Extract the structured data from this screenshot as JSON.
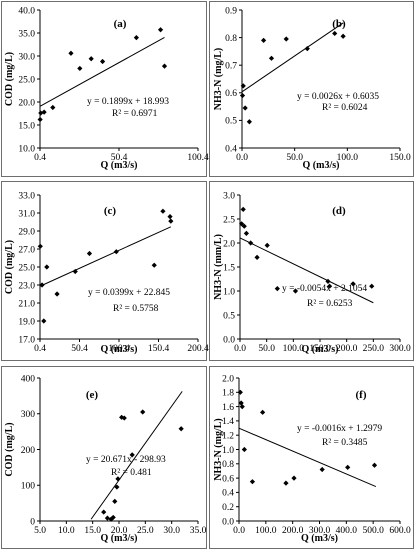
{
  "chart_data": [
    {
      "type": "scatter",
      "panel": "(a)",
      "ylabel": "COD (mg/L)",
      "xlabel": "Q (m3/s)",
      "xlim": [
        0.4,
        100.4
      ],
      "ylim": [
        10.0,
        40.0
      ],
      "x_ticks": [
        0.4,
        50.4,
        100.4
      ],
      "x_tick_labels": [
        "0.4",
        "50.4",
        "100.4"
      ],
      "y_ticks": [
        10,
        15,
        20,
        25,
        30,
        35,
        40
      ],
      "y_tick_labels": [
        "10.0",
        "15.0",
        "20.0",
        "25.0",
        "30.0",
        "35.0",
        "40.0"
      ],
      "points": [
        [
          0.5,
          16.2
        ],
        [
          0.9,
          17.6
        ],
        [
          3.0,
          17.8
        ],
        [
          8.5,
          18.8
        ],
        [
          20.0,
          30.6
        ],
        [
          25.6,
          27.3
        ],
        [
          32.8,
          29.4
        ],
        [
          40.0,
          28.8
        ],
        [
          61.4,
          34.0
        ],
        [
          76.7,
          35.7
        ],
        [
          79.2,
          27.8
        ]
      ],
      "trendline": {
        "slope": 0.1899,
        "intercept": 18.993,
        "x_range": [
          0.4,
          79.2
        ]
      },
      "equation": "y = 0.1899x + 18.993",
      "r_squared": "R² = 0.6971"
    },
    {
      "type": "scatter",
      "panel": "(b)",
      "ylabel": "NH3-N (mg/L)",
      "xlabel": "Q  (m3/s)",
      "xlim": [
        0,
        150
      ],
      "ylim": [
        0.4,
        0.9
      ],
      "x_ticks": [
        0,
        50,
        100,
        150
      ],
      "x_tick_labels": [
        "0.0",
        "50.0",
        "100.0",
        "150.0"
      ],
      "y_ticks": [
        0.4,
        0.5,
        0.6,
        0.7,
        0.8,
        0.9
      ],
      "y_tick_labels": [
        "0.4",
        "0.5",
        "0.6",
        "0.7",
        "0.8",
        "0.9"
      ],
      "points": [
        [
          0.5,
          0.59
        ],
        [
          1.2,
          0.625
        ],
        [
          3.0,
          0.545
        ],
        [
          7.0,
          0.495
        ],
        [
          20.5,
          0.79
        ],
        [
          28.0,
          0.725
        ],
        [
          42.0,
          0.795
        ],
        [
          62.0,
          0.76
        ],
        [
          88.0,
          0.815
        ],
        [
          96.0,
          0.805
        ]
      ],
      "trendline": {
        "slope": 0.0026,
        "intercept": 0.6035,
        "x_range": [
          0,
          96
        ]
      },
      "equation": "y = 0.0026x + 0.6035",
      "r_squared": "R² = 0.6024"
    },
    {
      "type": "scatter",
      "panel": "(c)",
      "ylabel": "COD (mg/L)",
      "xlabel": "Q (m3/s)",
      "xlim": [
        0.4,
        200.4
      ],
      "ylim": [
        17.0,
        33.0
      ],
      "x_ticks": [
        0.4,
        50.4,
        100.4,
        150.4,
        200.4
      ],
      "x_tick_labels": [
        "0.4",
        "50.4",
        "100.4",
        "150.4",
        "200.4"
      ],
      "y_ticks": [
        17,
        19,
        21,
        23,
        25,
        27,
        29,
        31,
        33
      ],
      "y_tick_labels": [
        "17.0",
        "19.0",
        "21.0",
        "23.0",
        "25.0",
        "27.0",
        "29.0",
        "31.0",
        "33.0"
      ],
      "points": [
        [
          0.8,
          27.3
        ],
        [
          3.0,
          23.0
        ],
        [
          5.2,
          19.0
        ],
        [
          9.0,
          25.0
        ],
        [
          22.0,
          22.0
        ],
        [
          45.0,
          24.5
        ],
        [
          63.0,
          26.5
        ],
        [
          97.0,
          26.7
        ],
        [
          145.0,
          25.2
        ],
        [
          156.0,
          31.2
        ],
        [
          165.0,
          30.6
        ],
        [
          166.0,
          30.1
        ]
      ],
      "trendline": {
        "slope": 0.0399,
        "intercept": 22.845,
        "x_range": [
          0.4,
          166
        ]
      },
      "equation": "y = 0.0399x + 22.845",
      "r_squared": "R² = 0.5758"
    },
    {
      "type": "scatter",
      "panel": "(d)",
      "ylabel": "NH3-N    (mm/L)",
      "xlabel": "Q (m3/s)",
      "xlim": [
        0,
        300
      ],
      "ylim": [
        0.0,
        3.0
      ],
      "x_ticks": [
        0,
        50,
        100,
        150,
        200,
        250,
        300
      ],
      "x_tick_labels": [
        "0.0",
        "50.0",
        "100.0",
        "150.0",
        "200.0",
        "250.0",
        "300.0"
      ],
      "y_ticks": [
        0.0,
        0.5,
        1.0,
        1.5,
        2.0,
        2.5,
        3.0
      ],
      "y_tick_labels": [
        "0.0",
        "0.5",
        "1.0",
        "1.5",
        "2.0",
        "2.5",
        "3.0"
      ],
      "points": [
        [
          3.0,
          2.4
        ],
        [
          6.0,
          2.7
        ],
        [
          8.0,
          2.35
        ],
        [
          12.0,
          2.2
        ],
        [
          20.0,
          2.0
        ],
        [
          32.0,
          1.7
        ],
        [
          51.0,
          1.95
        ],
        [
          70.0,
          1.05
        ],
        [
          104.0,
          1.0
        ],
        [
          165.0,
          1.2
        ],
        [
          168.0,
          1.1
        ],
        [
          212.0,
          1.15
        ],
        [
          247.0,
          1.1
        ]
      ],
      "trendline": {
        "slope": -0.0054,
        "intercept": 2.1054,
        "x_range": [
          0,
          250
        ]
      },
      "equation": "y = -0.0054x + 2.1054",
      "r_squared": "R² = 0.6253"
    },
    {
      "type": "scatter",
      "panel": "(e)",
      "ylabel": "COD (mg/L)",
      "xlabel": "Q (m3/s)",
      "xlim": [
        5.0,
        35.0
      ],
      "ylim": [
        0,
        400
      ],
      "x_ticks": [
        5,
        10,
        15,
        20,
        25,
        30,
        35
      ],
      "x_tick_labels": [
        "5.0",
        "10.0",
        "15.0",
        "20.0",
        "25.0",
        "30.0",
        "35.0"
      ],
      "y_ticks": [
        0,
        100,
        200,
        300,
        400
      ],
      "y_tick_labels": [
        "0",
        "100",
        "200",
        "300",
        "400"
      ],
      "points": [
        [
          17.1,
          25
        ],
        [
          17.8,
          8
        ],
        [
          18.5,
          5
        ],
        [
          18.9,
          10
        ],
        [
          19.2,
          55
        ],
        [
          19.6,
          95
        ],
        [
          19.8,
          118
        ],
        [
          20.5,
          290
        ],
        [
          21.0,
          288
        ],
        [
          22.5,
          185
        ],
        [
          24.5,
          305
        ],
        [
          31.8,
          258
        ]
      ],
      "trendline": {
        "slope": 20.671,
        "intercept": -298.93,
        "x_range": [
          14.7,
          32
        ]
      },
      "equation": "y = 20.671x - 298.93",
      "r_squared": "R² = 0.481"
    },
    {
      "type": "scatter",
      "panel": "(f)",
      "ylabel": "NH3-N    (mg/L)",
      "xlabel": "Q (m3/s)",
      "xlim": [
        0,
        600
      ],
      "ylim": [
        0.0,
        2.0
      ],
      "x_ticks": [
        0,
        100,
        200,
        300,
        400,
        500,
        600
      ],
      "x_tick_labels": [
        "0.0",
        "100.0",
        "200.0",
        "300.0",
        "400.0",
        "500.0",
        "600.0"
      ],
      "y_ticks": [
        0.0,
        0.2,
        0.4,
        0.6,
        0.8,
        1.0,
        1.2,
        1.4,
        1.6,
        1.8,
        2.0
      ],
      "y_tick_labels": [
        "0.0",
        "0.2",
        "0.4",
        "0.6",
        "0.8",
        "1.0",
        "1.2",
        "1.4",
        "1.6",
        "1.8",
        "2.0"
      ],
      "points": [
        [
          5.0,
          1.8
        ],
        [
          8.0,
          1.65
        ],
        [
          12.0,
          1.6
        ],
        [
          20.0,
          1.0
        ],
        [
          50.0,
          0.55
        ],
        [
          88.0,
          1.52
        ],
        [
          175.0,
          0.53
        ],
        [
          205.0,
          0.6
        ],
        [
          310.0,
          0.72
        ],
        [
          405.0,
          0.75
        ],
        [
          505.0,
          0.78
        ]
      ],
      "trendline": {
        "slope": -0.0016,
        "intercept": 1.2979,
        "x_range": [
          0,
          510
        ]
      },
      "equation": "y = -0.0016x + 1.2979",
      "r_squared": "R² = 0.3485"
    }
  ]
}
